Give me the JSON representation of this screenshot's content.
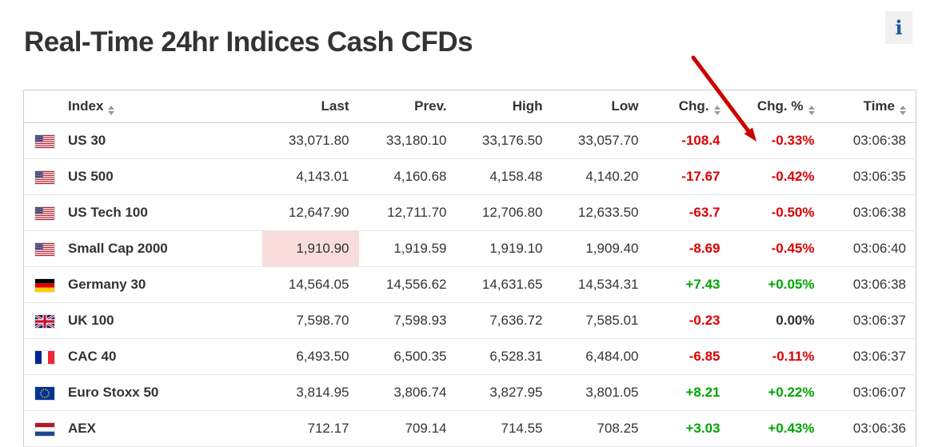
{
  "page": {
    "title": "Real-Time 24hr Indices Cash CFDs",
    "info_button_label": "i"
  },
  "colors": {
    "positive": "#00a400",
    "negative": "#dd0000",
    "neutral_change": "#333333",
    "highlight_flash": "#f9dcdc",
    "arrow_annotation": "#cc0000",
    "info_icon_blue": "#1a5c9e"
  },
  "annotation": {
    "type": "red-arrow",
    "points_at": "US 30 Chg. % value -0.33%"
  },
  "table": {
    "columns": [
      {
        "id": "index",
        "label": "Index",
        "sortable": true
      },
      {
        "id": "last",
        "label": "Last",
        "sortable": false
      },
      {
        "id": "prev",
        "label": "Prev.",
        "sortable": false
      },
      {
        "id": "high",
        "label": "High",
        "sortable": false
      },
      {
        "id": "low",
        "label": "Low",
        "sortable": false
      },
      {
        "id": "chg",
        "label": "Chg.",
        "sortable": true
      },
      {
        "id": "chg_pct",
        "label": "Chg. %",
        "sortable": true
      },
      {
        "id": "time",
        "label": "Time",
        "sortable": true
      }
    ],
    "rows": [
      {
        "flag": "us",
        "name": "US 30",
        "last": "33,071.80",
        "prev": "33,180.10",
        "high": "33,176.50",
        "low": "33,057.70",
        "chg": "-108.4",
        "chg_pct": "-0.33%",
        "time": "03:06:38",
        "last_highlight": false
      },
      {
        "flag": "us",
        "name": "US 500",
        "last": "4,143.01",
        "prev": "4,160.68",
        "high": "4,158.48",
        "low": "4,140.20",
        "chg": "-17.67",
        "chg_pct": "-0.42%",
        "time": "03:06:35",
        "last_highlight": false
      },
      {
        "flag": "us",
        "name": "US Tech 100",
        "last": "12,647.90",
        "prev": "12,711.70",
        "high": "12,706.80",
        "low": "12,633.50",
        "chg": "-63.7",
        "chg_pct": "-0.50%",
        "time": "03:06:38",
        "last_highlight": false
      },
      {
        "flag": "us",
        "name": "Small Cap 2000",
        "last": "1,910.90",
        "prev": "1,919.59",
        "high": "1,919.10",
        "low": "1,909.40",
        "chg": "-8.69",
        "chg_pct": "-0.45%",
        "time": "03:06:40",
        "last_highlight": true
      },
      {
        "flag": "de",
        "name": "Germany 30",
        "last": "14,564.05",
        "prev": "14,556.62",
        "high": "14,631.65",
        "low": "14,534.31",
        "chg": "+7.43",
        "chg_pct": "+0.05%",
        "time": "03:06:38",
        "last_highlight": false
      },
      {
        "flag": "gb",
        "name": "UK 100",
        "last": "7,598.70",
        "prev": "7,598.93",
        "high": "7,636.72",
        "low": "7,585.01",
        "chg": "-0.23",
        "chg_pct": "0.00%",
        "time": "03:06:37",
        "last_highlight": false
      },
      {
        "flag": "fr",
        "name": "CAC 40",
        "last": "6,493.50",
        "prev": "6,500.35",
        "high": "6,528.31",
        "low": "6,484.00",
        "chg": "-6.85",
        "chg_pct": "-0.11%",
        "time": "03:06:37",
        "last_highlight": false
      },
      {
        "flag": "eu",
        "name": "Euro Stoxx 50",
        "last": "3,814.95",
        "prev": "3,806.74",
        "high": "3,827.95",
        "low": "3,801.05",
        "chg": "+8.21",
        "chg_pct": "+0.22%",
        "time": "03:06:07",
        "last_highlight": false
      },
      {
        "flag": "nl",
        "name": "AEX",
        "last": "712.17",
        "prev": "709.14",
        "high": "714.55",
        "low": "708.25",
        "chg": "+3.03",
        "chg_pct": "+0.43%",
        "time": "03:06:36",
        "last_highlight": false
      }
    ]
  }
}
